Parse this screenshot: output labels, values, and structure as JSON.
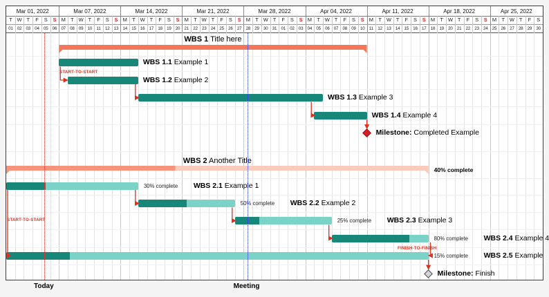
{
  "page": {
    "background": "#f4f4f4"
  },
  "chart_data": {
    "type": "gantt",
    "calendar": {
      "start_date": "Mar 01, 2022",
      "end_date": "Apr 30, 2022",
      "total_days": 61,
      "weeks": [
        {
          "label": "Mar 01, 2022",
          "days": 6
        },
        {
          "label": "Mar 07, 2022",
          "days": 7
        },
        {
          "label": "Mar 14, 2022",
          "days": 7
        },
        {
          "label": "Mar 21, 2022",
          "days": 7
        },
        {
          "label": "Mar 28, 2022",
          "days": 7
        },
        {
          "label": "Apr 04, 2022",
          "days": 7
        },
        {
          "label": "Apr 11, 2022",
          "days": 7
        },
        {
          "label": "Apr 18, 2022",
          "days": 7
        },
        {
          "label": "Apr 25, 2022",
          "days": 6
        }
      ],
      "day_letters": [
        "T",
        "W",
        "T",
        "F",
        "S",
        "S",
        "M",
        "T",
        "W",
        "T",
        "F",
        "S",
        "S",
        "M",
        "T",
        "W",
        "T",
        "F",
        "S",
        "S",
        "M",
        "T",
        "W",
        "T",
        "F",
        "S",
        "S",
        "M",
        "T",
        "W",
        "T",
        "F",
        "S",
        "S",
        "M",
        "T",
        "W",
        "T",
        "F",
        "S",
        "S",
        "M",
        "T",
        "W",
        "T",
        "F",
        "S",
        "S",
        "M",
        "T",
        "W",
        "T",
        "F",
        "S",
        "S",
        "M",
        "T",
        "W",
        "T",
        "F",
        "S"
      ],
      "day_numbers": [
        "01",
        "02",
        "03",
        "04",
        "05",
        "06",
        "07",
        "08",
        "09",
        "10",
        "11",
        "12",
        "13",
        "14",
        "15",
        "16",
        "17",
        "18",
        "19",
        "20",
        "21",
        "22",
        "23",
        "24",
        "25",
        "26",
        "27",
        "28",
        "29",
        "30",
        "31",
        "01",
        "02",
        "03",
        "04",
        "05",
        "06",
        "07",
        "08",
        "09",
        "10",
        "11",
        "12",
        "13",
        "14",
        "15",
        "16",
        "17",
        "18",
        "19",
        "20",
        "21",
        "22",
        "23",
        "24",
        "25",
        "26",
        "27",
        "28",
        "29",
        "30"
      ],
      "sundays": [
        5,
        12,
        19,
        26,
        33,
        40,
        47,
        54
      ],
      "week_boundaries": [
        6,
        13,
        20,
        27,
        34,
        41,
        48,
        55
      ]
    },
    "rows": [
      {
        "id": "g1",
        "kind": "group",
        "bold": "WBS 1",
        "text": " Title here",
        "start": 6,
        "end": 41,
        "start_date": "Mar 07",
        "end_date": "Apr 10"
      },
      {
        "id": "t11",
        "kind": "task",
        "bold": "WBS 1.1",
        "text": " Example 1",
        "start": 6,
        "end": 15,
        "start_date": "Mar 07",
        "end_date": "Mar 15"
      },
      {
        "id": "t12",
        "kind": "task",
        "bold": "WBS 1.2",
        "text": " Example 2",
        "start": 7,
        "end": 15,
        "start_date": "Mar 08",
        "end_date": "Mar 15"
      },
      {
        "id": "t13",
        "kind": "task",
        "bold": "WBS 1.3",
        "text": " Example 3",
        "start": 15,
        "end": 36,
        "start_date": "Mar 16",
        "end_date": "Apr 05"
      },
      {
        "id": "t14",
        "kind": "task",
        "bold": "WBS 1.4",
        "text": " Example 4",
        "start": 35,
        "end": 41,
        "start_date": "Apr 05",
        "end_date": "Apr 10"
      },
      {
        "id": "m1",
        "kind": "milestone",
        "bold": "Milestone:",
        "text": " Completed Example",
        "day": 41,
        "date": "Apr 11",
        "color": "#d81e24",
        "border": "#8c1114"
      },
      {
        "id": "g2",
        "kind": "group",
        "bold": "WBS 2",
        "text": " Another Title",
        "start": 0,
        "end": 48,
        "progress": 40,
        "progress_label": "40% complete",
        "start_date": "Mar 01",
        "end_date": "Apr 17"
      },
      {
        "id": "t21",
        "kind": "task",
        "bold": "WBS 2.1",
        "text": " Example 1",
        "start": 0,
        "end": 15,
        "progress": 30,
        "progress_label": "30% complete",
        "start_date": "Mar 01",
        "end_date": "Mar 15"
      },
      {
        "id": "t22",
        "kind": "task",
        "bold": "WBS 2.2",
        "text": " Example 2",
        "start": 15,
        "end": 26,
        "progress": 50,
        "progress_label": "50% complete",
        "start_date": "Mar 16",
        "end_date": "Mar 26"
      },
      {
        "id": "t23",
        "kind": "task",
        "bold": "WBS 2.3",
        "text": " Example 3",
        "start": 26,
        "end": 37,
        "progress": 25,
        "progress_label": "25% complete",
        "start_date": "Mar 27",
        "end_date": "Apr 06"
      },
      {
        "id": "t24",
        "kind": "task",
        "bold": "WBS 2.4",
        "text": " Example 4",
        "start": 37,
        "end": 48,
        "progress": 80,
        "progress_label": "80% complete",
        "start_date": "Apr 07",
        "end_date": "Apr 17"
      },
      {
        "id": "t25",
        "kind": "task",
        "bold": "WBS 2.5",
        "text": " Example",
        "start": 0,
        "end": 48,
        "progress": 15,
        "progress_label": "15% complete",
        "start_date": "Mar 01",
        "end_date": "Apr 17"
      },
      {
        "id": "m2",
        "kind": "milestone",
        "bold": "Milestone:",
        "text": " Finish",
        "day": 48,
        "date": "Apr 18",
        "color": "#d4d4d4",
        "border": "#4a4a4a"
      }
    ],
    "links": [
      {
        "id": "l1",
        "type": "start-to-start",
        "from": "t11",
        "to": "t12",
        "label": "START-TO-START"
      },
      {
        "id": "l2",
        "type": "finish-to-start",
        "from": "t12",
        "to": "t13"
      },
      {
        "id": "l3",
        "type": "finish-to-start",
        "from": "t13",
        "to": "t14"
      },
      {
        "id": "l4",
        "type": "finish-to-milestone",
        "from": "t14",
        "to": "m1"
      },
      {
        "id": "l5",
        "type": "start-to-start",
        "from": "t21",
        "to": "t25",
        "label": "START-TO-START"
      },
      {
        "id": "l6",
        "type": "finish-to-start",
        "from": "t21",
        "to": "t22"
      },
      {
        "id": "l7",
        "type": "finish-to-start",
        "from": "t22",
        "to": "t23"
      },
      {
        "id": "l8",
        "type": "finish-to-start",
        "from": "t23",
        "to": "t24"
      },
      {
        "id": "l9",
        "type": "finish-to-finish",
        "from": "t24",
        "to": "t25",
        "label": "FINISH-TO-FINISH"
      },
      {
        "id": "l10",
        "type": "finish-to-milestone",
        "from": "t25",
        "to": "m2"
      }
    ],
    "markers": [
      {
        "id": "today",
        "label": "Today",
        "date": "Mar 05",
        "day": 4.35,
        "color_key": "today_line"
      },
      {
        "id": "meeting",
        "label": "Meeting",
        "date": "Mar 28",
        "day": 27.4,
        "color_key": "meeting_line"
      }
    ],
    "colors": {
      "bar_teal": "#168779",
      "bar_teal_light": "#7bd2c6",
      "group_salmon": "#f4765b",
      "group_salmon_done": "#f6957c",
      "group_salmon_light": "#fbccbb",
      "link_red": "#e0301e",
      "today_line": "#e03131",
      "meeting_line": "#2a35d6",
      "sunday": "#d92b2b"
    }
  }
}
